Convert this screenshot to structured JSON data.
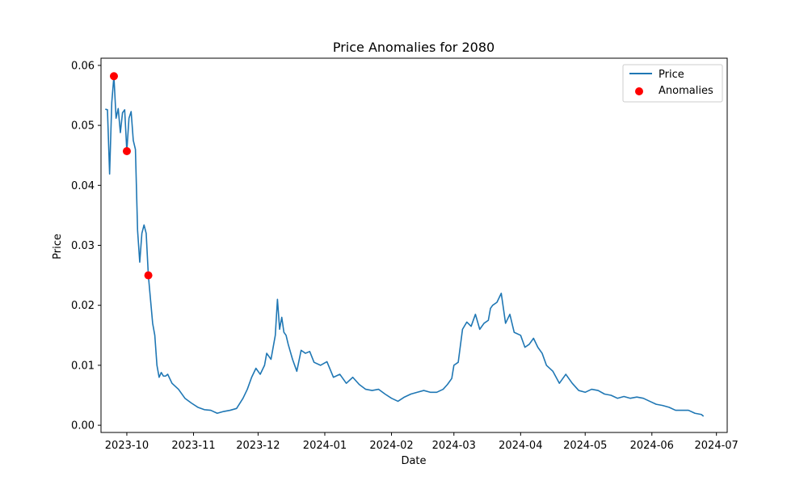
{
  "chart_data": {
    "type": "line",
    "title": "Price Anomalies for 2080",
    "xlabel": "Date",
    "ylabel": "Price",
    "xlim": [
      "2023-09-19",
      "2024-07-06"
    ],
    "ylim": [
      -0.0012,
      0.0612
    ],
    "grid": false,
    "legend_position": "top-right",
    "x_ticks": [
      "2023-10-01",
      "2023-11-01",
      "2023-12-01",
      "2024-01-01",
      "2024-02-01",
      "2024-03-01",
      "2024-04-01",
      "2024-05-01",
      "2024-06-01",
      "2024-07-01"
    ],
    "x_tick_labels": [
      "2023-10",
      "2023-11",
      "2023-12",
      "2024-01",
      "2024-02",
      "2024-03",
      "2024-04",
      "2024-05",
      "2024-06",
      "2024-07"
    ],
    "y_ticks": [
      0.0,
      0.01,
      0.02,
      0.03,
      0.04,
      0.05,
      0.06
    ],
    "y_tick_labels": [
      "0.00",
      "0.01",
      "0.02",
      "0.03",
      "0.04",
      "0.05",
      "0.06"
    ],
    "series": [
      {
        "name": "Price",
        "kind": "line",
        "color": "#1f77b4",
        "x": [
          "2023-09-21",
          "2023-09-22",
          "2023-09-23",
          "2023-09-24",
          "2023-09-25",
          "2023-09-26",
          "2023-09-27",
          "2023-09-28",
          "2023-09-29",
          "2023-09-30",
          "2023-10-01",
          "2023-10-02",
          "2023-10-03",
          "2023-10-04",
          "2023-10-05",
          "2023-10-06",
          "2023-10-07",
          "2023-10-08",
          "2023-10-09",
          "2023-10-10",
          "2023-10-11",
          "2023-10-12",
          "2023-10-13",
          "2023-10-14",
          "2023-10-15",
          "2023-10-16",
          "2023-10-17",
          "2023-10-18",
          "2023-10-19",
          "2023-10-20",
          "2023-10-22",
          "2023-10-25",
          "2023-10-28",
          "2023-10-31",
          "2023-11-03",
          "2023-11-06",
          "2023-11-09",
          "2023-11-12",
          "2023-11-15",
          "2023-11-18",
          "2023-11-21",
          "2023-11-24",
          "2023-11-26",
          "2023-11-28",
          "2023-11-30",
          "2023-12-02",
          "2023-12-04",
          "2023-12-05",
          "2023-12-07",
          "2023-12-09",
          "2023-12-10",
          "2023-12-11",
          "2023-12-12",
          "2023-12-13",
          "2023-12-14",
          "2023-12-15",
          "2023-12-17",
          "2023-12-19",
          "2023-12-21",
          "2023-12-23",
          "2023-12-25",
          "2023-12-27",
          "2023-12-30",
          "2024-01-02",
          "2024-01-05",
          "2024-01-08",
          "2024-01-11",
          "2024-01-14",
          "2024-01-17",
          "2024-01-20",
          "2024-01-23",
          "2024-01-26",
          "2024-01-29",
          "2024-02-01",
          "2024-02-04",
          "2024-02-07",
          "2024-02-10",
          "2024-02-13",
          "2024-02-16",
          "2024-02-19",
          "2024-02-22",
          "2024-02-25",
          "2024-02-27",
          "2024-02-29",
          "2024-03-01",
          "2024-03-03",
          "2024-03-05",
          "2024-03-07",
          "2024-03-09",
          "2024-03-11",
          "2024-03-13",
          "2024-03-15",
          "2024-03-17",
          "2024-03-18",
          "2024-03-19",
          "2024-03-21",
          "2024-03-23",
          "2024-03-25",
          "2024-03-27",
          "2024-03-29",
          "2024-04-01",
          "2024-04-03",
          "2024-04-05",
          "2024-04-07",
          "2024-04-09",
          "2024-04-11",
          "2024-04-13",
          "2024-04-16",
          "2024-04-19",
          "2024-04-22",
          "2024-04-25",
          "2024-04-28",
          "2024-05-01",
          "2024-05-04",
          "2024-05-07",
          "2024-05-10",
          "2024-05-13",
          "2024-05-16",
          "2024-05-19",
          "2024-05-22",
          "2024-05-25",
          "2024-05-28",
          "2024-05-31",
          "2024-06-03",
          "2024-06-06",
          "2024-06-09",
          "2024-06-12",
          "2024-06-15",
          "2024-06-18",
          "2024-06-21",
          "2024-06-24",
          "2024-06-25"
        ],
        "y": [
          0.0527,
          0.0526,
          0.0419,
          0.0538,
          0.0582,
          0.0512,
          0.0528,
          0.0488,
          0.0521,
          0.0526,
          0.0457,
          0.0512,
          0.0523,
          0.0475,
          0.046,
          0.0325,
          0.0272,
          0.032,
          0.0334,
          0.032,
          0.025,
          0.021,
          0.017,
          0.015,
          0.01,
          0.008,
          0.0088,
          0.0082,
          0.0082,
          0.0085,
          0.007,
          0.006,
          0.0045,
          0.0037,
          0.003,
          0.0026,
          0.0025,
          0.002,
          0.0023,
          0.0025,
          0.0028,
          0.0045,
          0.006,
          0.008,
          0.0095,
          0.0085,
          0.01,
          0.012,
          0.011,
          0.015,
          0.021,
          0.016,
          0.018,
          0.0155,
          0.015,
          0.0135,
          0.011,
          0.009,
          0.0125,
          0.012,
          0.0123,
          0.0105,
          0.01,
          0.0106,
          0.008,
          0.0085,
          0.007,
          0.008,
          0.0068,
          0.006,
          0.0058,
          0.006,
          0.0052,
          0.0045,
          0.004,
          0.0047,
          0.0052,
          0.0055,
          0.0058,
          0.0055,
          0.0055,
          0.006,
          0.0068,
          0.0078,
          0.01,
          0.0105,
          0.016,
          0.0172,
          0.0165,
          0.0185,
          0.016,
          0.017,
          0.0175,
          0.0195,
          0.02,
          0.0205,
          0.022,
          0.017,
          0.0185,
          0.0155,
          0.015,
          0.013,
          0.0135,
          0.0145,
          0.013,
          0.012,
          0.01,
          0.009,
          0.007,
          0.0085,
          0.007,
          0.0058,
          0.0055,
          0.006,
          0.0058,
          0.0052,
          0.005,
          0.0045,
          0.0048,
          0.0045,
          0.0047,
          0.0045,
          0.004,
          0.0035,
          0.0033,
          0.003,
          0.0025,
          0.0025,
          0.0025,
          0.002,
          0.0018,
          0.0015
        ]
      },
      {
        "name": "Anomalies",
        "kind": "scatter",
        "color": "#ff0000",
        "x": [
          "2023-09-25",
          "2023-10-01",
          "2023-10-11"
        ],
        "y": [
          0.0582,
          0.0457,
          0.025
        ]
      }
    ]
  }
}
